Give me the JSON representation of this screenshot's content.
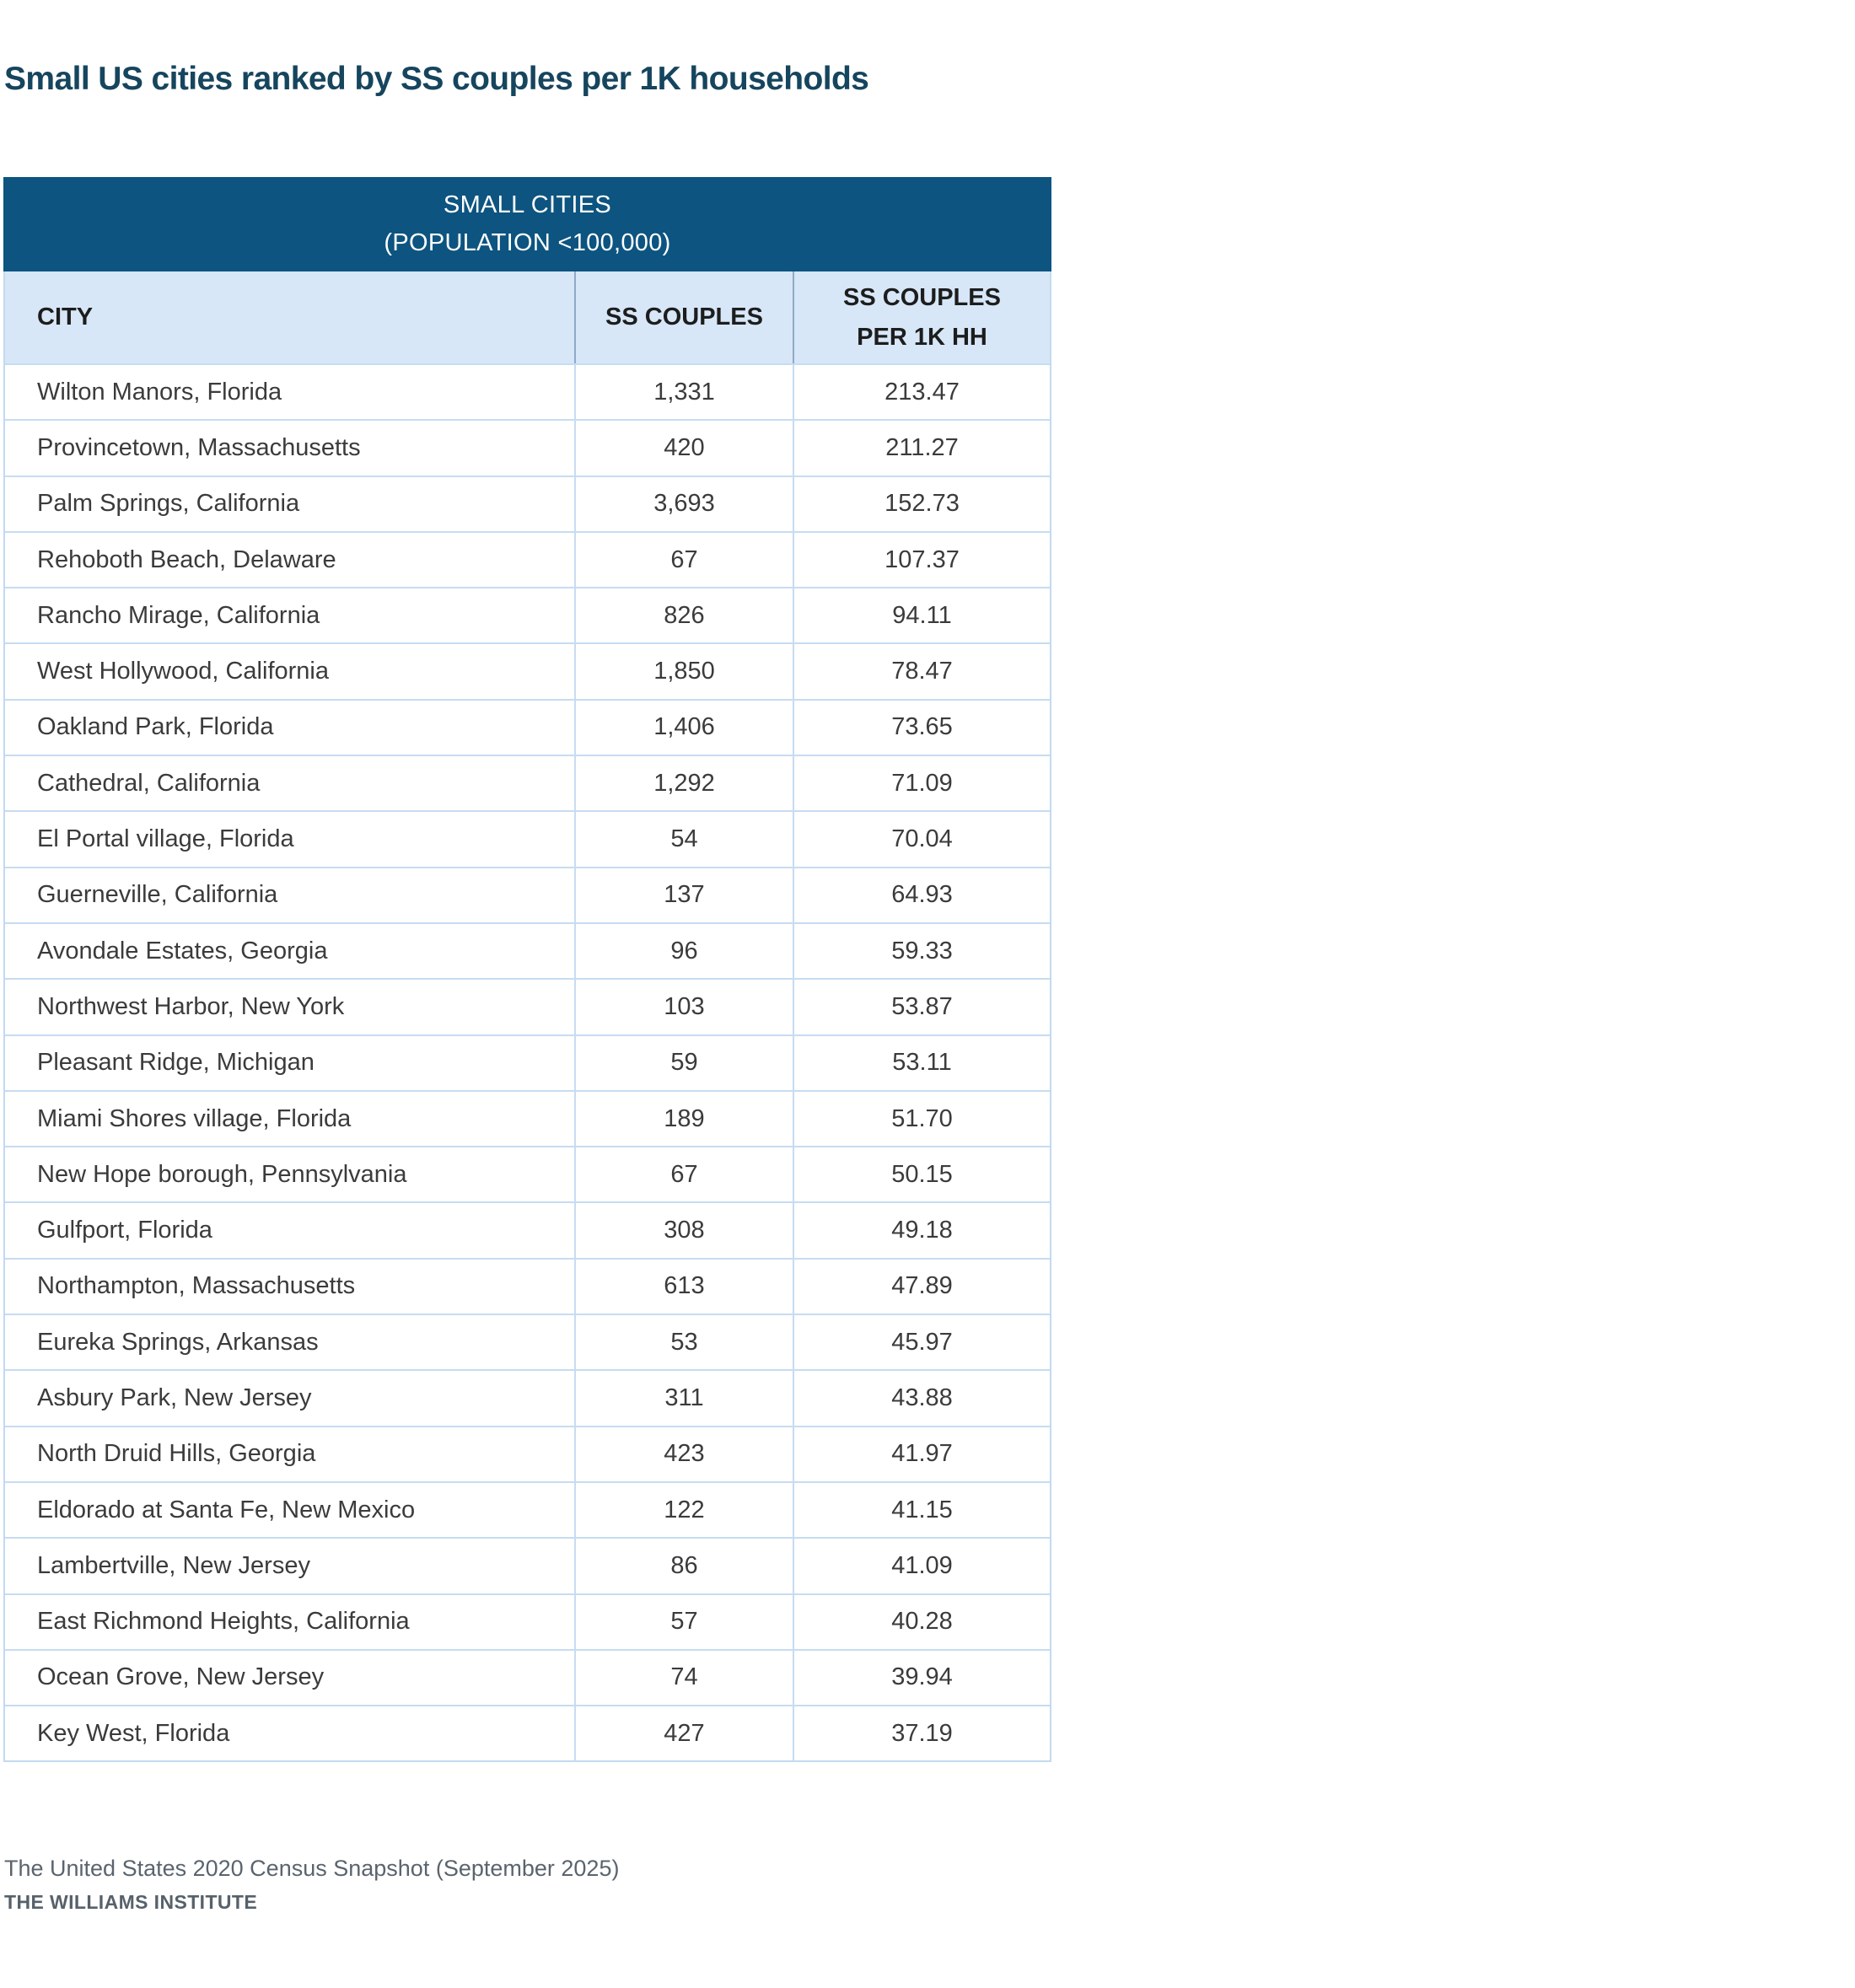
{
  "title": "Small US cities ranked by SS couples per 1K households",
  "table": {
    "header_line1": "SMALL CITIES",
    "header_line2": "(POPULATION <100,000)",
    "columns": {
      "city": "CITY",
      "couples": "SS COUPLES",
      "per1k_line1": "SS COUPLES",
      "per1k_line2": "PER 1K HH"
    },
    "rows": [
      {
        "city": "Wilton Manors, Florida",
        "couples": "1,331",
        "per_1k": "213.47"
      },
      {
        "city": "Provincetown, Massachusetts",
        "couples": "420",
        "per_1k": "211.27"
      },
      {
        "city": "Palm Springs, California",
        "couples": "3,693",
        "per_1k": "152.73"
      },
      {
        "city": "Rehoboth Beach, Delaware",
        "couples": "67",
        "per_1k": "107.37"
      },
      {
        "city": "Rancho Mirage, California",
        "couples": "826",
        "per_1k": "94.11"
      },
      {
        "city": "West Hollywood, California",
        "couples": "1,850",
        "per_1k": "78.47"
      },
      {
        "city": "Oakland Park, Florida",
        "couples": "1,406",
        "per_1k": "73.65"
      },
      {
        "city": "Cathedral, California",
        "couples": "1,292",
        "per_1k": "71.09"
      },
      {
        "city": "El Portal village, Florida",
        "couples": "54",
        "per_1k": "70.04"
      },
      {
        "city": "Guerneville, California",
        "couples": "137",
        "per_1k": "64.93"
      },
      {
        "city": "Avondale Estates, Georgia",
        "couples": "96",
        "per_1k": "59.33"
      },
      {
        "city": "Northwest Harbor, New York",
        "couples": "103",
        "per_1k": "53.87"
      },
      {
        "city": "Pleasant Ridge, Michigan",
        "couples": "59",
        "per_1k": "53.11"
      },
      {
        "city": "Miami Shores village, Florida",
        "couples": "189",
        "per_1k": "51.70"
      },
      {
        "city": "New Hope borough, Pennsylvania",
        "couples": "67",
        "per_1k": "50.15"
      },
      {
        "city": "Gulfport, Florida",
        "couples": "308",
        "per_1k": "49.18"
      },
      {
        "city": "Northampton, Massachusetts",
        "couples": "613",
        "per_1k": "47.89"
      },
      {
        "city": "Eureka Springs, Arkansas",
        "couples": "53",
        "per_1k": "45.97"
      },
      {
        "city": "Asbury Park, New Jersey",
        "couples": "311",
        "per_1k": "43.88"
      },
      {
        "city": "North Druid Hills, Georgia",
        "couples": "423",
        "per_1k": "41.97"
      },
      {
        "city": "Eldorado at Santa Fe, New Mexico",
        "couples": "122",
        "per_1k": "41.15"
      },
      {
        "city": "Lambertville, New Jersey",
        "couples": "86",
        "per_1k": "41.09"
      },
      {
        "city": "East Richmond Heights, California",
        "couples": "57",
        "per_1k": "40.28"
      },
      {
        "city": "Ocean Grove, New Jersey",
        "couples": "74",
        "per_1k": "39.94"
      },
      {
        "city": "Key West, Florida",
        "couples": "427",
        "per_1k": "37.19"
      }
    ]
  },
  "footer": {
    "source": "The United States 2020 Census Snapshot (September 2025)",
    "org": "THE WILLIAMS INSTITUTE"
  },
  "colors": {
    "title_text": "#16455e",
    "header_band_bg": "#0d5480",
    "header_band_text": "#ffffff",
    "column_band_bg": "#d7e7f8",
    "column_band_text": "#1d1d1d",
    "row_divider": "#c6dcf2",
    "band_divider": "#8fabc6",
    "data_text": "#3b3b3b",
    "footer_text": "#5a646e"
  },
  "chart_data": {
    "type": "table",
    "title": "Small US cities ranked by SS couples per 1K households",
    "subtitle": "SMALL CITIES (POPULATION <100,000)",
    "columns": [
      "CITY",
      "SS COUPLES",
      "SS COUPLES PER 1K HH"
    ],
    "rows": [
      [
        "Wilton Manors, Florida",
        1331,
        213.47
      ],
      [
        "Provincetown, Massachusetts",
        420,
        211.27
      ],
      [
        "Palm Springs, California",
        3693,
        152.73
      ],
      [
        "Rehoboth Beach, Delaware",
        67,
        107.37
      ],
      [
        "Rancho Mirage, California",
        826,
        94.11
      ],
      [
        "West Hollywood, California",
        1850,
        78.47
      ],
      [
        "Oakland Park, Florida",
        1406,
        73.65
      ],
      [
        "Cathedral, California",
        1292,
        71.09
      ],
      [
        "El Portal village, Florida",
        54,
        70.04
      ],
      [
        "Guerneville, California",
        137,
        64.93
      ],
      [
        "Avondale Estates, Georgia",
        96,
        59.33
      ],
      [
        "Northwest Harbor, New York",
        103,
        53.87
      ],
      [
        "Pleasant Ridge, Michigan",
        59,
        53.11
      ],
      [
        "Miami Shores village, Florida",
        189,
        51.7
      ],
      [
        "New Hope borough, Pennsylvania",
        67,
        50.15
      ],
      [
        "Gulfport, Florida",
        308,
        49.18
      ],
      [
        "Northampton, Massachusetts",
        613,
        47.89
      ],
      [
        "Eureka Springs, Arkansas",
        53,
        45.97
      ],
      [
        "Asbury Park, New Jersey",
        311,
        43.88
      ],
      [
        "North Druid Hills, Georgia",
        423,
        41.97
      ],
      [
        "Eldorado at Santa Fe, New Mexico",
        122,
        41.15
      ],
      [
        "Lambertville, New Jersey",
        86,
        41.09
      ],
      [
        "East Richmond Heights, California",
        57,
        40.28
      ],
      [
        "Ocean Grove, New Jersey",
        74,
        39.94
      ],
      [
        "Key West, Florida",
        427,
        37.19
      ]
    ],
    "source": "The United States 2020 Census Snapshot (September 2025)"
  }
}
